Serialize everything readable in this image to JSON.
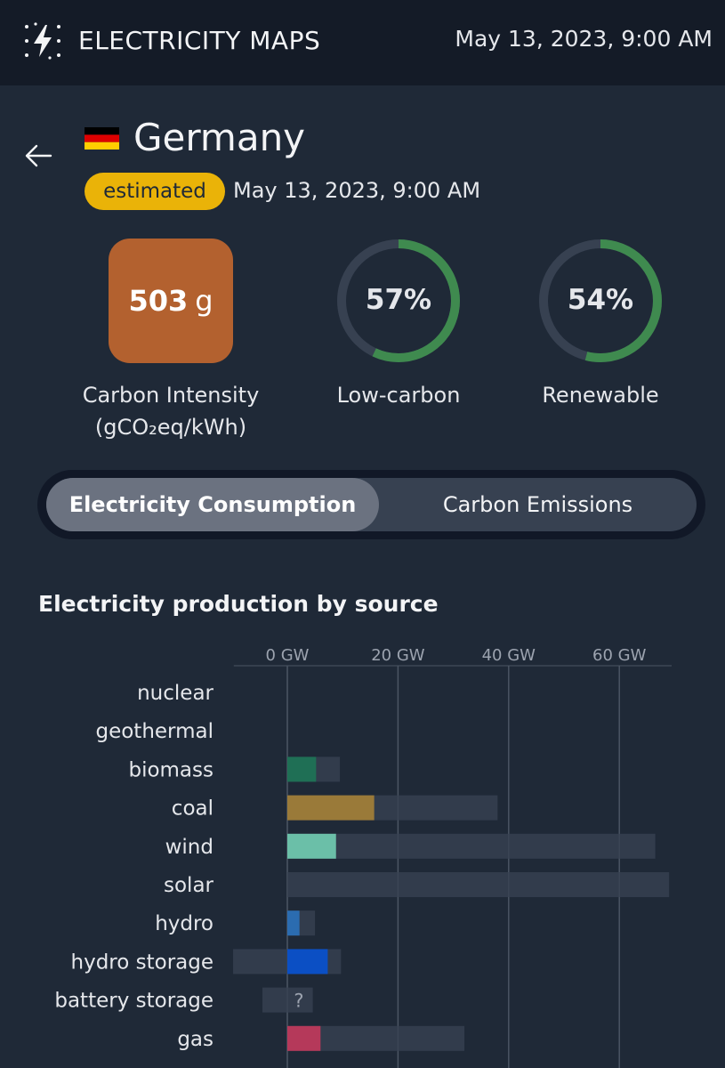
{
  "header": {
    "brand": "ELECTRICITY MAPS",
    "datetime": "May 13, 2023, 9:00 AM"
  },
  "zone": {
    "country": "Germany",
    "badge": "estimated",
    "datetime": "May 13, 2023, 9:00 AM"
  },
  "metrics": {
    "carbon_intensity_value": "503",
    "carbon_intensity_unit": "g",
    "carbon_intensity_label_1": "Carbon Intensity",
    "carbon_intensity_label_2": "(gCO₂eq/kWh)",
    "carbon_intensity_color": "#b3612f",
    "low_carbon_value": "57%",
    "low_carbon_fraction": 0.57,
    "low_carbon_label": "Low-carbon",
    "renewable_value": "54%",
    "renewable_fraction": 0.54,
    "renewable_label": "Renewable",
    "ring_color": "#3f8a4f"
  },
  "toggle": {
    "active_label": "Electricity Consumption",
    "inactive_label": "Carbon Emissions"
  },
  "chart_data": {
    "type": "bar",
    "title": "Electricity production by source",
    "xlim": [
      -10,
      70
    ],
    "ticks": [
      "0 GW",
      "20 GW",
      "40 GW",
      "60 GW"
    ],
    "tick_values": [
      0,
      20,
      40,
      60
    ],
    "categories": [
      "nuclear",
      "geothermal",
      "biomass",
      "coal",
      "wind",
      "solar",
      "hydro",
      "hydro storage",
      "battery storage",
      "gas"
    ],
    "series": [
      {
        "values": [
          0,
          0,
          5.2,
          15.7,
          8.8,
          0,
          2.2,
          7.3,
          0,
          6.0
        ],
        "colors": [
          "#6b7280",
          "#6b7280",
          "#1f6f55",
          "#9a7a39",
          "#6bbfa8",
          "#f5c518",
          "#2b6cb0",
          "#0b4fc4",
          "#6b7280",
          "#b5395a"
        ]
      },
      {
        "capacity": [
          0,
          0,
          9.5,
          38,
          66.5,
          69,
          5,
          9.7,
          4.6,
          32
        ],
        "capacity_min": [
          0,
          0,
          0,
          0,
          0,
          0,
          0,
          -9.8,
          -4.5,
          0
        ]
      }
    ],
    "annotations": [
      {
        "category": "battery storage",
        "text": "?"
      }
    ]
  }
}
